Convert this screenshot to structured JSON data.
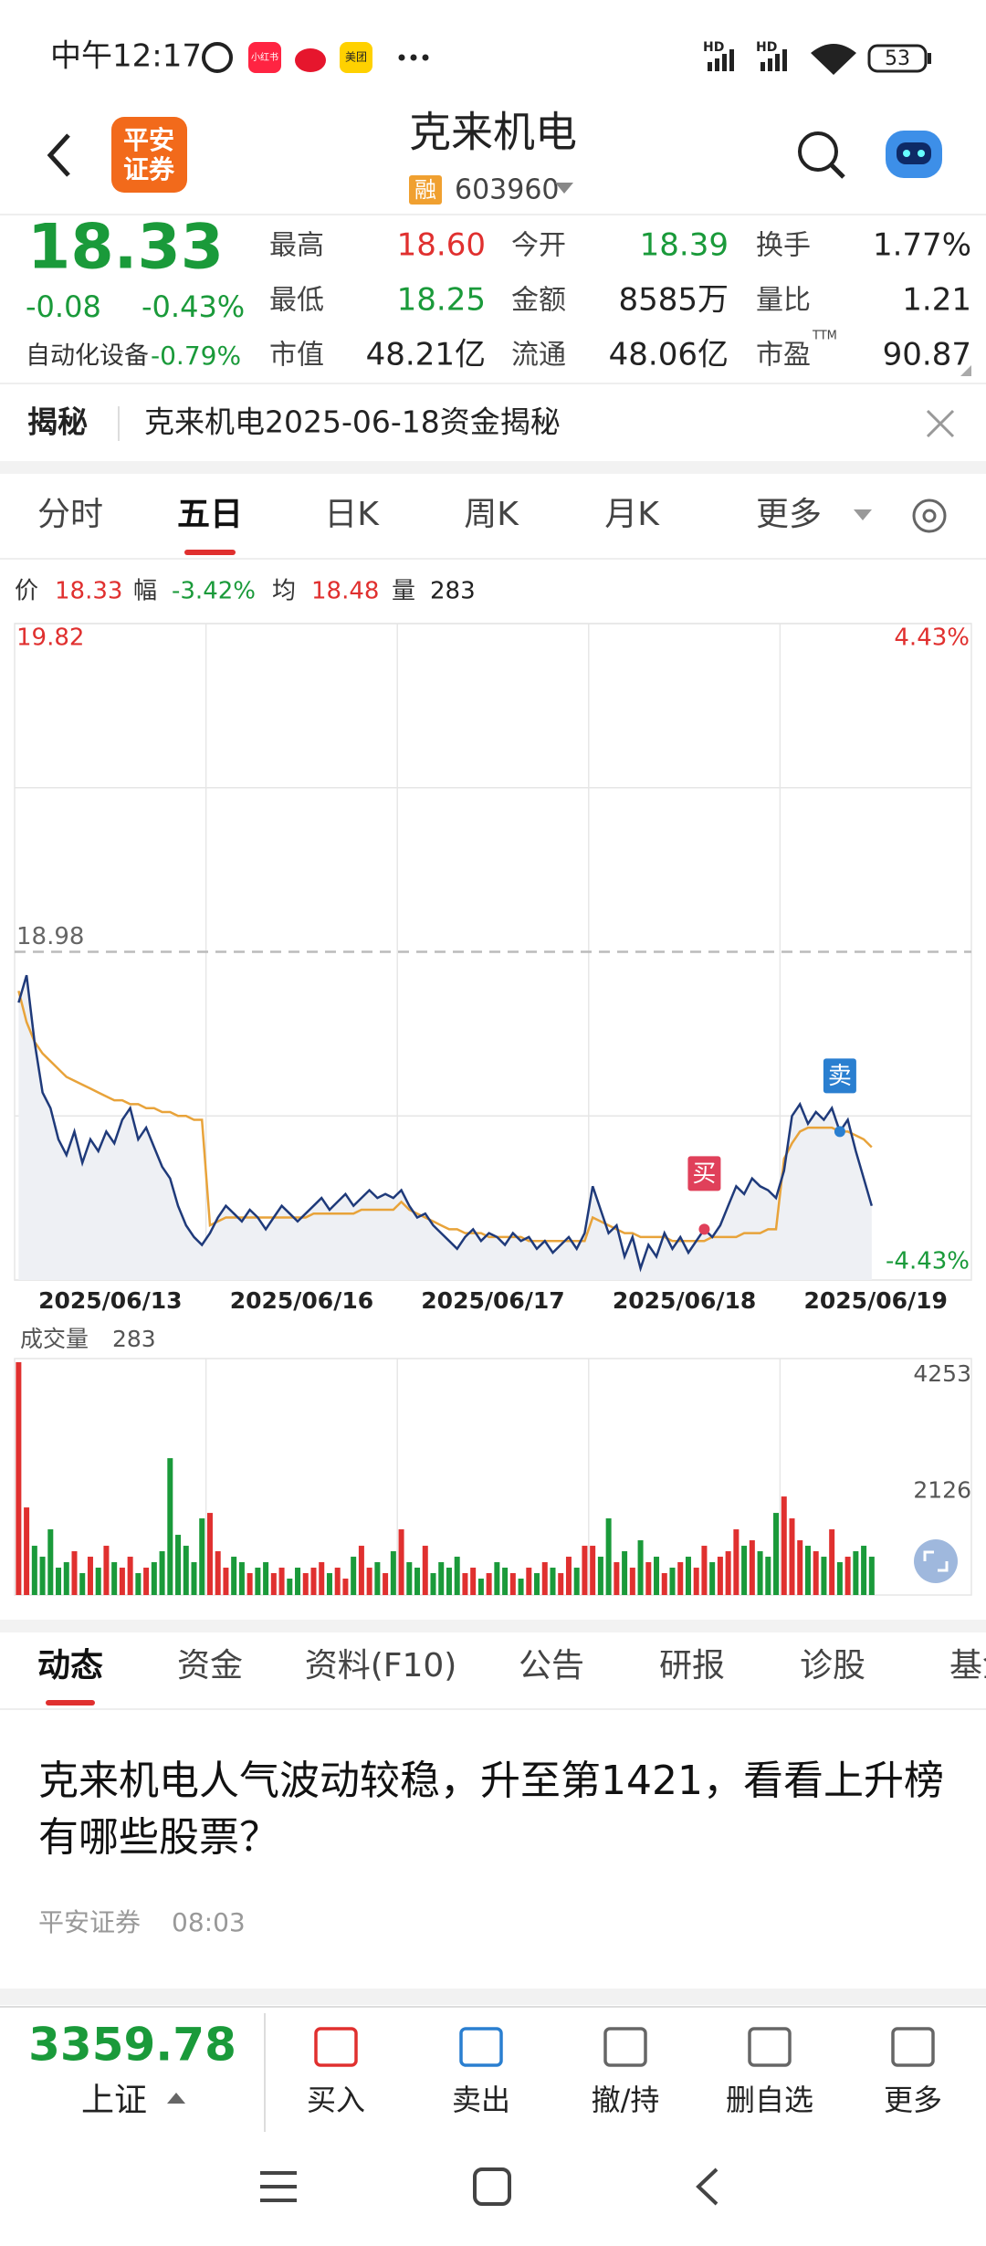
{
  "status": {
    "time": "中午12:17",
    "apps": [
      "小红书",
      "美团"
    ],
    "network": [
      "HD",
      "HD"
    ],
    "battery": "53"
  },
  "header": {
    "logo": [
      "平安",
      "证券"
    ],
    "title": "克来机电",
    "badge": "融",
    "code": "603960"
  },
  "quote": {
    "price": "18.33",
    "change": "-0.08",
    "change_pct": "-0.43%",
    "sector": "自动化设备",
    "sector_pct": "-0.79%",
    "stats": [
      {
        "label": "最高",
        "value": "18.60",
        "color": "#e0302f"
      },
      {
        "label": "今开",
        "value": "18.39",
        "color": "#1a9a3a"
      },
      {
        "label": "换手",
        "value": "1.77%",
        "color": "#222222"
      },
      {
        "label": "最低",
        "value": "18.25",
        "color": "#1a9a3a"
      },
      {
        "label": "金额",
        "value": "8585万",
        "color": "#222222"
      },
      {
        "label": "量比",
        "value": "1.21",
        "color": "#222222"
      },
      {
        "label": "市值",
        "value": "48.21亿",
        "color": "#222222"
      },
      {
        "label": "流通",
        "value": "48.06亿",
        "color": "#222222"
      },
      {
        "label": "市盈",
        "value": "90.87",
        "color": "#222222",
        "sup": "TTM"
      }
    ]
  },
  "banner": {
    "label": "揭秘",
    "text": "克来机电2025-06-18资金揭秘"
  },
  "tabs": [
    "分时",
    "五日",
    "日K",
    "周K",
    "月K",
    "更多"
  ],
  "chart_data": {
    "type": "line",
    "info": [
      {
        "label": "价",
        "value": "18.33",
        "color": "#e0302f"
      },
      {
        "label": "幅",
        "value": "-3.42%",
        "color": "#1a9a3a"
      },
      {
        "label": "均",
        "value": "18.48",
        "color": "#e0302f"
      },
      {
        "label": "量",
        "value": "283",
        "color": "#222222"
      }
    ],
    "categories": [
      "2025/06/13",
      "2025/06/16",
      "2025/06/17",
      "2025/06/18",
      "2025/06/19"
    ],
    "ylim": [
      18.14,
      19.82
    ],
    "yticks": [
      18.14,
      18.98,
      19.82
    ],
    "y2lim": [
      -4.43,
      4.43
    ],
    "y2ticks": [
      {
        "value": 4.43,
        "label": "4.43%"
      },
      {
        "value": -4.43,
        "label": "-4.43%"
      }
    ],
    "grid": true,
    "series": [
      {
        "color": "#1f3a7a",
        "values": [
          [
            18.85,
            18.92,
            18.75,
            18.62,
            18.58,
            18.5,
            18.46,
            18.52,
            18.44,
            18.5,
            18.47,
            18.52,
            18.49,
            18.55,
            18.58,
            18.5,
            18.53,
            18.48,
            18.43,
            18.4,
            18.33,
            18.28,
            18.25,
            18.23
          ],
          [
            18.26,
            18.3,
            18.33,
            18.31,
            18.29,
            18.32,
            18.3,
            18.27,
            18.3,
            18.33,
            18.31,
            18.29,
            18.31,
            18.33,
            18.35,
            18.32,
            18.34,
            18.36,
            18.33,
            18.35,
            18.37,
            18.35,
            18.36,
            18.35
          ],
          [
            18.37,
            18.33,
            18.3,
            18.31,
            18.28,
            18.26,
            18.24,
            18.22,
            18.25,
            18.27,
            18.24,
            18.26,
            18.25,
            18.23,
            18.26,
            18.24,
            18.25,
            18.22,
            18.24,
            18.21,
            18.23,
            18.25,
            18.22,
            18.26
          ],
          [
            18.38,
            18.32,
            18.26,
            18.28,
            18.2,
            18.25,
            18.17,
            18.23,
            18.2,
            18.26,
            18.22,
            18.25,
            18.21,
            18.24,
            18.27,
            18.25,
            18.28,
            18.33,
            18.38,
            18.36,
            18.4,
            18.38,
            18.37,
            18.35
          ],
          [
            18.42,
            18.56,
            18.59,
            18.54,
            18.57,
            18.55,
            18.58,
            18.52,
            18.55,
            18.47,
            18.4,
            18.33,
            null,
            null,
            null,
            null,
            null,
            null,
            null,
            null,
            null,
            null,
            null,
            null
          ]
        ]
      },
      {
        "color": "#e8a33a",
        "values": [
          [
            18.88,
            18.8,
            18.75,
            18.72,
            18.7,
            18.68,
            18.66,
            18.65,
            18.64,
            18.63,
            18.62,
            18.61,
            18.6,
            18.6,
            18.59,
            18.59,
            18.58,
            18.58,
            18.57,
            18.57,
            18.56,
            18.56,
            18.55,
            18.55
          ],
          [
            18.28,
            18.29,
            18.3,
            18.3,
            18.3,
            18.3,
            18.3,
            18.3,
            18.3,
            18.3,
            18.3,
            18.3,
            18.3,
            18.31,
            18.31,
            18.31,
            18.31,
            18.31,
            18.31,
            18.32,
            18.32,
            18.32,
            18.32,
            18.32
          ],
          [
            18.34,
            18.32,
            18.31,
            18.3,
            18.29,
            18.28,
            18.27,
            18.27,
            18.26,
            18.26,
            18.26,
            18.25,
            18.25,
            18.25,
            18.25,
            18.25,
            18.24,
            18.24,
            18.24,
            18.24,
            18.24,
            18.24,
            18.24,
            18.24
          ],
          [
            18.3,
            18.29,
            18.28,
            18.27,
            18.26,
            18.26,
            18.25,
            18.25,
            18.25,
            18.25,
            18.24,
            18.24,
            18.24,
            18.24,
            18.24,
            18.25,
            18.25,
            18.25,
            18.25,
            18.26,
            18.26,
            18.26,
            18.27,
            18.27
          ],
          [
            18.45,
            18.49,
            18.52,
            18.53,
            18.53,
            18.53,
            18.53,
            18.52,
            18.52,
            18.51,
            18.5,
            18.48,
            null,
            null,
            null,
            null,
            null,
            null,
            null,
            null,
            null,
            null,
            null,
            null
          ]
        ]
      }
    ],
    "trades": [
      {
        "label": "买",
        "value": 18.27,
        "color": "#e0405a"
      },
      {
        "label": "卖",
        "value": 18.52,
        "color": "#2a7fd0"
      }
    ],
    "volume": {
      "label": "成交量",
      "current": "283",
      "ylim": [
        0,
        4253
      ],
      "yticks": [
        2126,
        4253
      ],
      "up_color": "#e0302f",
      "down_color": "#1a9a3a",
      "values": [
        [
          4253,
          1600,
          900,
          700,
          1200,
          500,
          600,
          800,
          400,
          700,
          500,
          900,
          600,
          500,
          700,
          400,
          500,
          600,
          800,
          2500,
          1100,
          900,
          600,
          1400
        ],
        [
          1500,
          800,
          500,
          700,
          600,
          400,
          500,
          600,
          400,
          500,
          300,
          500,
          400,
          500,
          600,
          400,
          500,
          300,
          700,
          900,
          500,
          600,
          400,
          800
        ],
        [
          1200,
          600,
          500,
          900,
          400,
          600,
          500,
          700,
          400,
          500,
          300,
          400,
          600,
          500,
          400,
          300,
          500,
          400,
          600,
          500,
          400,
          700,
          500,
          900
        ],
        [
          900,
          700,
          1400,
          600,
          800,
          500,
          1000,
          600,
          700,
          400,
          500,
          600,
          700,
          500,
          900,
          600,
          700,
          800,
          1200,
          900,
          1000,
          800,
          700,
          1500
        ],
        [
          1800,
          1400,
          1000,
          900,
          800,
          700,
          1200,
          600,
          700,
          800,
          900,
          700,
          null,
          null,
          null,
          null,
          null,
          null,
          null,
          null,
          null,
          null,
          null,
          null
        ]
      ]
    }
  },
  "news_tabs": [
    "动态",
    "资金",
    "资料(F10)",
    "公告",
    "研报",
    "诊股",
    "基金"
  ],
  "news": {
    "title": "克来机电人气波动较稳，升至第1421，看看上升榜有哪些股票？",
    "source": "平安证券",
    "time": "08:03"
  },
  "bottom": {
    "index_value": "3359.78",
    "index_name": "上证",
    "actions": [
      "买入",
      "卖出",
      "撤/持",
      "删自选",
      "更多"
    ]
  }
}
